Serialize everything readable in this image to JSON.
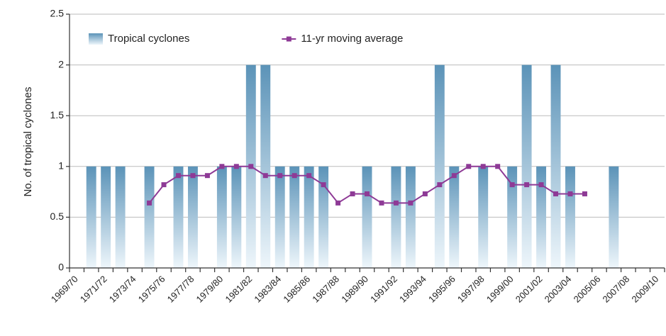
{
  "chart_data": {
    "type": "bar",
    "y_label": "No. of tropical cyclones",
    "categories": [
      "1969/70",
      null,
      "1971/72",
      null,
      "1973/74",
      null,
      "1975/76",
      null,
      "1977/78",
      null,
      "1979/80",
      null,
      "1981/82",
      null,
      "1983/84",
      null,
      "1985/86",
      null,
      "1987/88",
      null,
      "1989/90",
      null,
      "1991/92",
      null,
      "1993/94",
      null,
      "1995/96",
      null,
      "1997/98",
      null,
      "1999/00",
      null,
      "2001/02",
      null,
      "2003/04",
      null,
      "2005/06",
      null,
      "2007/08",
      null,
      "2009/10"
    ],
    "series": [
      {
        "name": "Tropical cyclones",
        "type": "bar",
        "color": "#5b93b8",
        "values": [
          0,
          1,
          1,
          1,
          0,
          1,
          0,
          1,
          1,
          0,
          1,
          1,
          2,
          2,
          1,
          1,
          1,
          1,
          0,
          0,
          1,
          0,
          1,
          1,
          0,
          2,
          1,
          0,
          1,
          0,
          1,
          2,
          1,
          2,
          1,
          0,
          0,
          1,
          0,
          0,
          0
        ]
      },
      {
        "name": "11-yr moving average",
        "type": "line",
        "color": "#8e3a96",
        "values": [
          null,
          null,
          null,
          null,
          null,
          0.64,
          0.82,
          0.91,
          0.91,
          0.91,
          1,
          1,
          1,
          0.91,
          0.91,
          0.91,
          0.91,
          0.82,
          0.64,
          0.73,
          0.73,
          0.64,
          0.64,
          0.64,
          0.73,
          0.82,
          0.91,
          1,
          1,
          1,
          0.82,
          0.82,
          0.82,
          0.73,
          0.73,
          0.73,
          null,
          null,
          null,
          null,
          null
        ]
      }
    ],
    "ylim": [
      0,
      2.5
    ],
    "yticks": [
      0,
      0.5,
      1,
      1.5,
      2,
      2.5
    ],
    "grid": true,
    "legend": "top-left"
  }
}
